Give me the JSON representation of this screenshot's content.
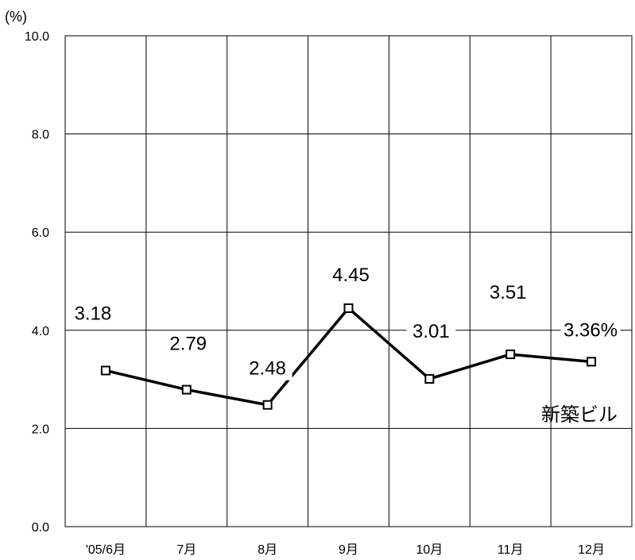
{
  "chart_data": {
    "type": "line",
    "unit_label": "(%)",
    "categories": [
      "'05/6月",
      "7月",
      "8月",
      "9月",
      "10月",
      "11月",
      "12月"
    ],
    "series": [
      {
        "name": "新築ビル",
        "values": [
          3.18,
          2.79,
          2.48,
          4.45,
          3.01,
          3.51,
          3.36
        ],
        "data_labels": [
          "3.18",
          "2.79",
          "2.48",
          "4.45",
          "3.01",
          "3.51",
          "3.36%"
        ],
        "color": "#000000",
        "marker": "square"
      }
    ],
    "yticks": [
      "0.0",
      "2.0",
      "4.0",
      "6.0",
      "8.0",
      "10.0"
    ],
    "ylim": [
      0,
      10
    ],
    "grid": true,
    "title": "",
    "xlabel": "",
    "ylabel": ""
  }
}
